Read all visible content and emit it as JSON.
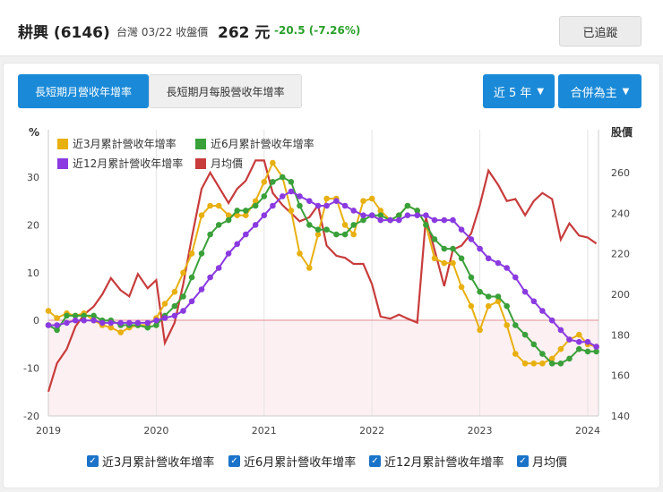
{
  "header": {
    "stock_name": "耕興 (6146)",
    "market_date": "台灣 03/22 收盤價",
    "price": "262 元",
    "change": "-20.5 (-7.26%)",
    "track_label": "已追蹤",
    "change_color": "#2aa02a"
  },
  "tabs": [
    {
      "label": "長短期月營收年增率",
      "active": true
    },
    {
      "label": "長短期月每股營收年增率",
      "active": false
    }
  ],
  "controls": {
    "period": "近 5 年",
    "basis": "合併為主"
  },
  "legend_bottom": [
    "近3月累計營收年增率",
    "近6月累計營收年增率",
    "近12月累計營收年增率",
    "月均價"
  ],
  "chart_data": {
    "type": "line",
    "left_axis_unit": "%",
    "right_axis_unit": "股價",
    "x_ticks": [
      "2019",
      "2020",
      "2021",
      "2022",
      "2023",
      "2024"
    ],
    "y_left_ticks": [
      "30",
      "20",
      "10",
      "0",
      "-10",
      "-20"
    ],
    "y_right_ticks": [
      "260",
      "240",
      "220",
      "200",
      "180",
      "160",
      "140"
    ],
    "ylim_left": [
      -20,
      30
    ],
    "ylim_right": [
      140,
      260
    ],
    "xlim": [
      2019.0,
      2024.1
    ],
    "series": [
      {
        "name": "近3月累計營收年增率",
        "color": "#e8b010",
        "axis": "left",
        "markers": true,
        "x": [
          2019.0,
          2019.08,
          2019.17,
          2019.25,
          2019.33,
          2019.42,
          2019.5,
          2019.58,
          2019.67,
          2019.75,
          2019.83,
          2019.92,
          2020.0,
          2020.08,
          2020.17,
          2020.25,
          2020.33,
          2020.42,
          2020.5,
          2020.58,
          2020.67,
          2020.75,
          2020.83,
          2020.92,
          2021.0,
          2021.08,
          2021.17,
          2021.25,
          2021.33,
          2021.42,
          2021.5,
          2021.58,
          2021.67,
          2021.75,
          2021.83,
          2021.92,
          2022.0,
          2022.08,
          2022.17,
          2022.25,
          2022.33,
          2022.42,
          2022.5,
          2022.58,
          2022.67,
          2022.75,
          2022.83,
          2022.92,
          2023.0,
          2023.08,
          2023.17,
          2023.25,
          2023.33,
          2023.42,
          2023.5,
          2023.58,
          2023.67,
          2023.75,
          2023.83,
          2023.92,
          2024.0,
          2024.08
        ],
        "y": [
          2,
          0.5,
          1.5,
          1,
          1.5,
          0,
          -1,
          -1.5,
          -2.5,
          -1.5,
          -1,
          -1,
          0.5,
          3.5,
          6,
          10,
          14,
          22,
          24,
          24,
          22,
          22,
          22,
          25,
          29,
          33,
          30,
          23,
          14,
          11,
          18,
          25.5,
          25.5,
          20,
          18,
          25,
          25.5,
          23,
          21,
          22,
          24,
          23,
          20,
          13,
          12,
          12,
          7,
          3,
          -2,
          3,
          4,
          -1,
          -7,
          -9,
          -9,
          -9,
          -8,
          -6,
          -4,
          -3,
          -5,
          -5.5
        ]
      },
      {
        "name": "近6月累計營收年增率",
        "color": "#3aa03a",
        "axis": "left",
        "markers": true,
        "x": [
          2019.0,
          2019.08,
          2019.17,
          2019.25,
          2019.33,
          2019.42,
          2019.5,
          2019.58,
          2019.67,
          2019.75,
          2019.83,
          2019.92,
          2020.0,
          2020.08,
          2020.17,
          2020.25,
          2020.33,
          2020.42,
          2020.5,
          2020.58,
          2020.67,
          2020.75,
          2020.83,
          2020.92,
          2021.0,
          2021.08,
          2021.17,
          2021.25,
          2021.33,
          2021.42,
          2021.5,
          2021.58,
          2021.67,
          2021.75,
          2021.83,
          2021.92,
          2022.0,
          2022.08,
          2022.17,
          2022.25,
          2022.33,
          2022.42,
          2022.5,
          2022.58,
          2022.67,
          2022.75,
          2022.83,
          2022.92,
          2023.0,
          2023.08,
          2023.17,
          2023.25,
          2023.33,
          2023.42,
          2023.5,
          2023.58,
          2023.67,
          2023.75,
          2023.83,
          2023.92,
          2024.0,
          2024.08
        ],
        "y": [
          -1,
          -2,
          1,
          1,
          1,
          1,
          0,
          0,
          -1,
          -1,
          -1,
          -1.5,
          -1,
          1,
          3,
          5,
          9,
          14,
          18,
          20,
          21,
          23,
          23,
          24,
          26,
          29,
          30,
          29,
          24,
          20,
          19,
          19,
          18,
          18,
          20,
          21,
          22,
          22,
          21,
          22,
          24,
          23,
          20,
          17,
          15,
          15,
          13,
          9,
          6,
          5,
          5,
          3,
          -1,
          -3,
          -5,
          -7,
          -9,
          -9,
          -8,
          -6,
          -6.5,
          -6.5
        ]
      },
      {
        "name": "近12月累計營收年增率",
        "color": "#8a3ae0",
        "axis": "left",
        "markers": true,
        "x": [
          2019.0,
          2019.08,
          2019.17,
          2019.25,
          2019.33,
          2019.42,
          2019.5,
          2019.58,
          2019.67,
          2019.75,
          2019.83,
          2019.92,
          2020.0,
          2020.08,
          2020.17,
          2020.25,
          2020.33,
          2020.42,
          2020.5,
          2020.58,
          2020.67,
          2020.75,
          2020.83,
          2020.92,
          2021.0,
          2021.08,
          2021.17,
          2021.25,
          2021.33,
          2021.42,
          2021.5,
          2021.58,
          2021.67,
          2021.75,
          2021.83,
          2021.92,
          2022.0,
          2022.08,
          2022.17,
          2022.25,
          2022.33,
          2022.42,
          2022.5,
          2022.58,
          2022.67,
          2022.75,
          2022.83,
          2022.92,
          2023.0,
          2023.08,
          2023.17,
          2023.25,
          2023.33,
          2023.42,
          2023.5,
          2023.58,
          2023.67,
          2023.75,
          2023.83,
          2023.92,
          2024.0,
          2024.08
        ],
        "y": [
          -1,
          -1,
          -0.5,
          0,
          0,
          0,
          -0.5,
          -0.5,
          -0.5,
          -0.5,
          -0.5,
          -0.5,
          0,
          0.5,
          1,
          2,
          4,
          6.5,
          9,
          11,
          14,
          16,
          18,
          20,
          22,
          24,
          26,
          27,
          26,
          25,
          24,
          24,
          25,
          24,
          23,
          22,
          22,
          21,
          21,
          21,
          22,
          22,
          22,
          21,
          21,
          21,
          19,
          17,
          15,
          13,
          12,
          11,
          9,
          6,
          4,
          2,
          0,
          -2,
          -4,
          -4.5,
          -4.5,
          -5.5
        ]
      },
      {
        "name": "月均價",
        "color": "#c83c3c",
        "axis": "right",
        "markers": false,
        "x": [
          2019.0,
          2019.08,
          2019.17,
          2019.25,
          2019.33,
          2019.42,
          2019.5,
          2019.58,
          2019.67,
          2019.75,
          2019.83,
          2019.92,
          2020.0,
          2020.08,
          2020.17,
          2020.25,
          2020.33,
          2020.42,
          2020.5,
          2020.58,
          2020.67,
          2020.75,
          2020.83,
          2020.92,
          2021.0,
          2021.08,
          2021.17,
          2021.25,
          2021.33,
          2021.42,
          2021.5,
          2021.58,
          2021.67,
          2021.75,
          2021.83,
          2021.92,
          2022.0,
          2022.08,
          2022.17,
          2022.25,
          2022.33,
          2022.42,
          2022.5,
          2022.58,
          2022.67,
          2022.75,
          2022.83,
          2022.92,
          2023.0,
          2023.08,
          2023.17,
          2023.25,
          2023.33,
          2023.42,
          2023.5,
          2023.58,
          2023.67,
          2023.75,
          2023.83,
          2023.92,
          2024.0,
          2024.08
        ],
        "y": [
          152,
          166,
          173,
          184,
          190,
          194,
          200,
          208,
          202,
          199,
          210,
          203,
          207,
          176,
          186,
          205,
          228,
          252,
          260,
          253,
          245,
          252,
          256,
          266,
          266,
          250,
          244,
          240,
          236,
          238,
          244,
          224,
          219,
          218,
          215,
          215,
          205,
          189,
          188,
          190,
          188,
          186,
          238,
          222,
          204,
          222,
          224,
          230,
          244,
          261,
          254,
          246,
          247,
          239,
          246,
          250,
          247,
          227,
          235,
          229,
          228,
          225
        ]
      }
    ]
  }
}
